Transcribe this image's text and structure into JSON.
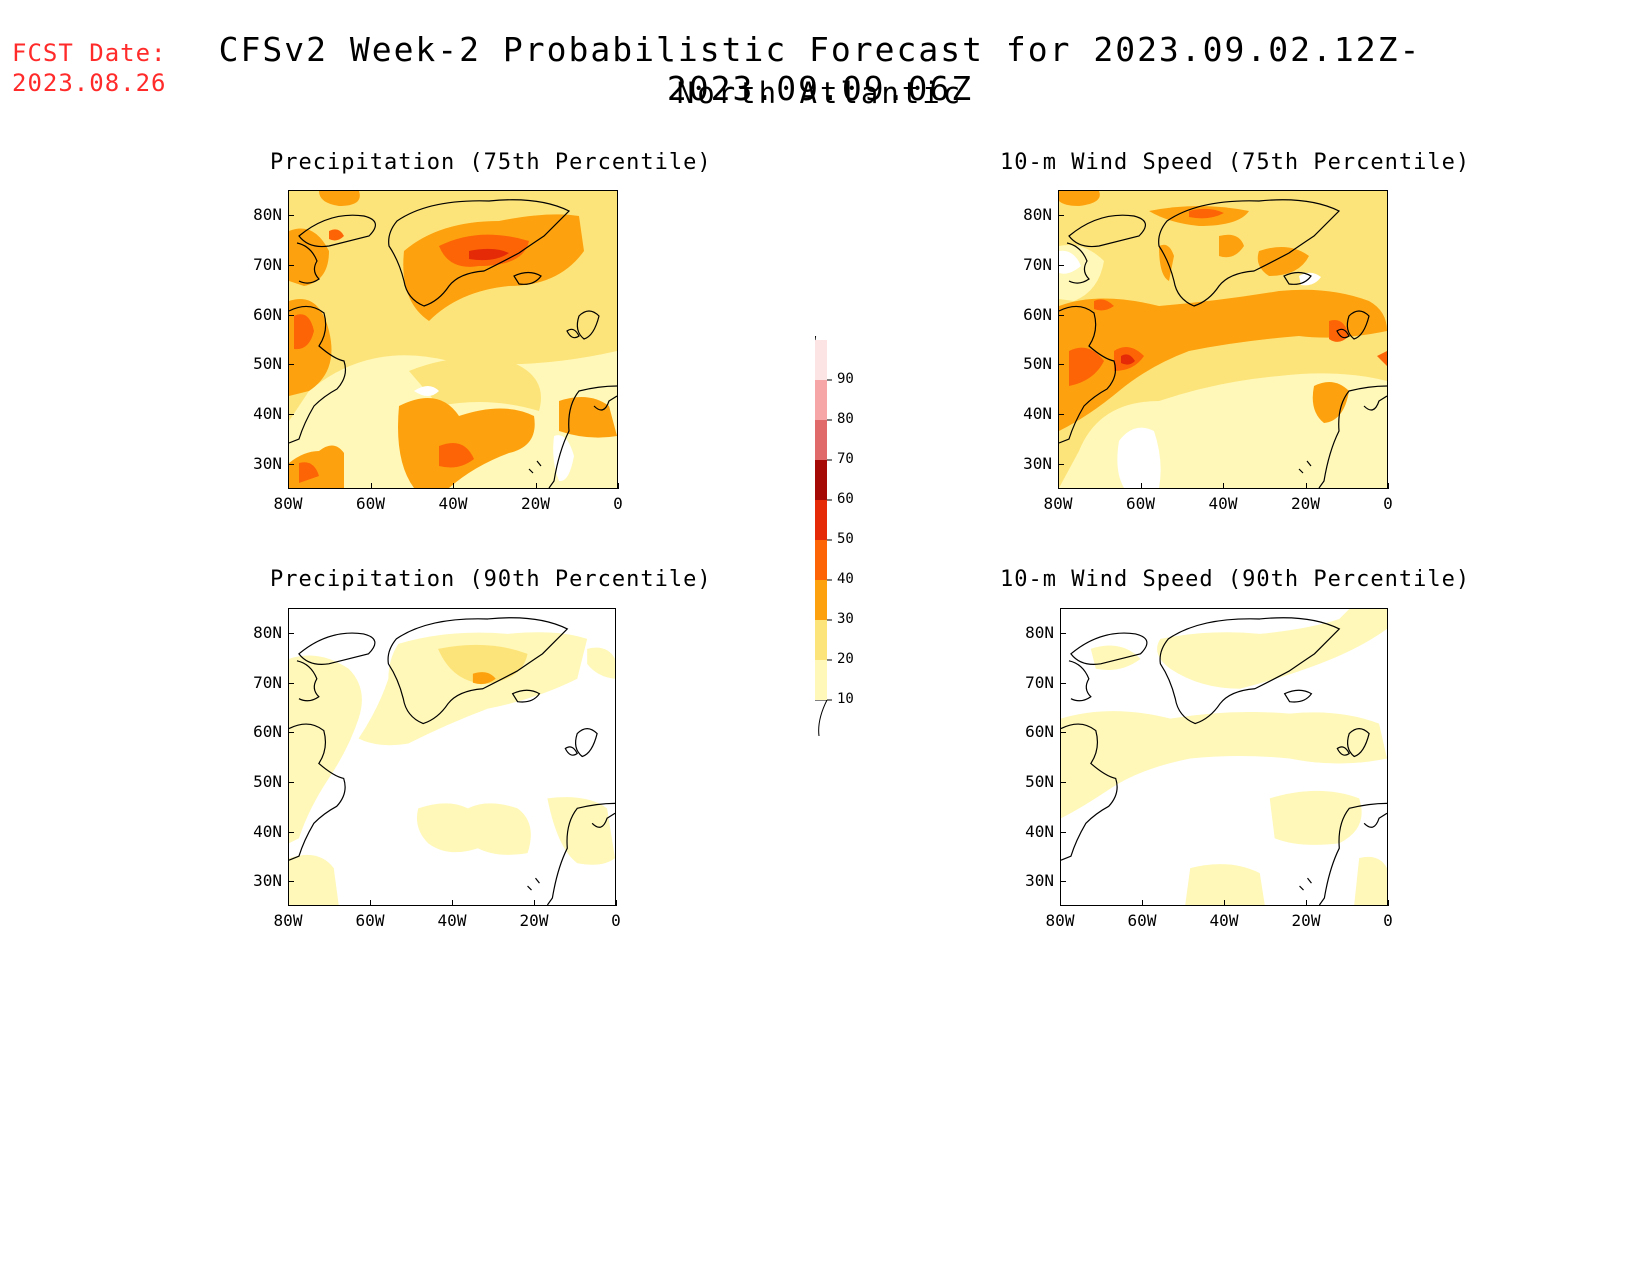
{
  "header": {
    "fcst_label": "FCST Date:",
    "fcst_date": "2023.08.26",
    "title": "CFSv2 Week-2 Probabilistic Forecast for 2023.09.02.12Z-2023.09.09.06Z",
    "region": "North Atlantic"
  },
  "panels": [
    {
      "title": "Precipitation (75th Percentile)"
    },
    {
      "title": "10-m Wind Speed (75th Percentile)"
    },
    {
      "title": "Precipitation (90th Percentile)"
    },
    {
      "title": "10-m Wind Speed (90th Percentile)"
    }
  ],
  "axes": {
    "lat_labels": [
      "80N",
      "70N",
      "60N",
      "50N",
      "40N",
      "30N"
    ],
    "lon_labels": [
      "80W",
      "60W",
      "40W",
      "20W",
      "0"
    ]
  },
  "colorbar": {
    "levels": [
      "10",
      "20",
      "30",
      "40",
      "50",
      "60",
      "70",
      "80",
      "90"
    ],
    "colors": [
      "#fff8b8",
      "#fde47a",
      "#fda20e",
      "#fd6406",
      "#e42a06",
      "#a50a06",
      "#e06a6a",
      "#f6a6a6",
      "#fce4e4"
    ]
  }
}
